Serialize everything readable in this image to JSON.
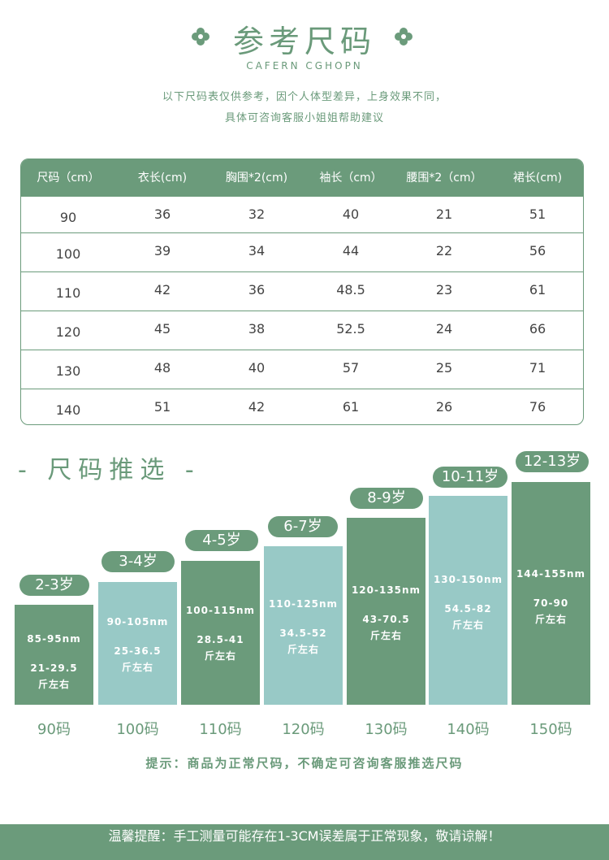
{
  "header": {
    "title": "参考尺码",
    "subtitle": "CAFERN CGHOPN",
    "intro_line1": "以下尺码表仅供参考，因个人体型差异，上身效果不同，",
    "intro_line2": "具体可咨询客服小姐姐帮助建议"
  },
  "table": {
    "headers": [
      "尺码（cm）",
      "衣长(cm)",
      "胸围*2(cm)",
      "袖长（cm）",
      "腰围*2（cm）",
      "裙长(cm)"
    ],
    "rows": [
      [
        "90",
        "36",
        "32",
        "40",
        "21",
        "51"
      ],
      [
        "100",
        "39",
        "34",
        "44",
        "22",
        "56"
      ],
      [
        "110",
        "42",
        "36",
        "48.5",
        "23",
        "61"
      ],
      [
        "120",
        "45",
        "38",
        "52.5",
        "24",
        "66"
      ],
      [
        "130",
        "48",
        "40",
        "57",
        "25",
        "71"
      ],
      [
        "140",
        "51",
        "42",
        "61",
        "26",
        "76"
      ]
    ]
  },
  "recommend": {
    "title": "- 尺码推选 -",
    "items": [
      {
        "age": "2-3岁",
        "height": "85-95nm",
        "weight": "21-29.5",
        "unit": "斤左右",
        "size": "90码"
      },
      {
        "age": "3-4岁",
        "height": "90-105nm",
        "weight": "25-36.5",
        "unit": "斤左右",
        "size": "100码"
      },
      {
        "age": "4-5岁",
        "height": "100-115nm",
        "weight": "28.5-41",
        "unit": "斤左右",
        "size": "110码"
      },
      {
        "age": "6-7岁",
        "height": "110-125nm",
        "weight": "34.5-52",
        "unit": "斤左右",
        "size": "120码"
      },
      {
        "age": "8-9岁",
        "height": "120-135nm",
        "weight": "43-70.5",
        "unit": "斤左右",
        "size": "130码"
      },
      {
        "age": "10-11岁",
        "height": "130-150nm",
        "weight": "54.5-82",
        "unit": "斤左右",
        "size": "140码"
      },
      {
        "age": "12-13岁",
        "height": "144-155nm",
        "weight": "70-90",
        "unit": "斤左右",
        "size": "150码"
      }
    ]
  },
  "tip": "提示：商品为正常尺码，不确定可咨询客服推选尺码",
  "footer": "温馨提醒：手工测量可能存在1-3CM误差属于正常现象，敬请谅解！",
  "colors": {
    "green": "#6b9b7b",
    "teal": "#98c9c6"
  },
  "icons": {
    "title_ornament": "clover-icon"
  }
}
